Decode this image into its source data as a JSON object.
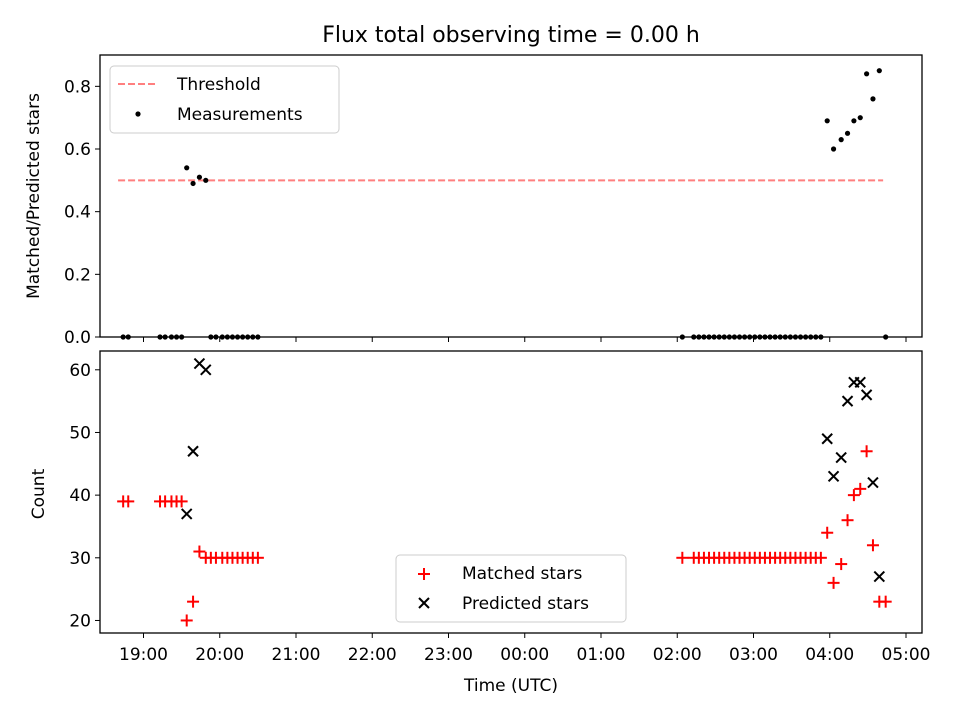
{
  "chart_data": [
    {
      "type": "scatter",
      "title": "Flux total observing time = 0.00 h",
      "xlabel": "",
      "ylabel": "Matched/Predicted stars",
      "ylim": [
        0,
        0.9
      ],
      "yticks": [
        "0.0",
        "0.2",
        "0.4",
        "0.6",
        "0.8"
      ],
      "grid": false,
      "legend_position": "upper-left",
      "threshold": {
        "name": "Threshold",
        "value": 0.5,
        "x_range": [
          "18:40",
          "04:42"
        ],
        "color": "#ff7f7f",
        "style": "dashed"
      },
      "series": [
        {
          "name": "Measurements",
          "color": "#000000",
          "marker": "dot",
          "points": [
            [
              "18:44",
              0
            ],
            [
              "18:48",
              0
            ],
            [
              "19:13",
              0
            ],
            [
              "19:17",
              0
            ],
            [
              "19:22",
              0
            ],
            [
              "19:26",
              0
            ],
            [
              "19:30",
              0
            ],
            [
              "19:34",
              0.54
            ],
            [
              "19:39",
              0.49
            ],
            [
              "19:44",
              0.51
            ],
            [
              "19:49",
              0.5
            ],
            [
              "19:53",
              0
            ],
            [
              "19:57",
              0
            ],
            [
              "20:02",
              0
            ],
            [
              "20:06",
              0
            ],
            [
              "20:10",
              0
            ],
            [
              "20:14",
              0
            ],
            [
              "20:18",
              0
            ],
            [
              "20:22",
              0
            ],
            [
              "20:26",
              0
            ],
            [
              "20:30",
              0
            ],
            [
              "02:04",
              0
            ],
            [
              "02:13",
              0
            ],
            [
              "02:17",
              0
            ],
            [
              "02:21",
              0
            ],
            [
              "02:25",
              0
            ],
            [
              "02:29",
              0
            ],
            [
              "02:33",
              0
            ],
            [
              "02:37",
              0
            ],
            [
              "02:41",
              0
            ],
            [
              "02:45",
              0
            ],
            [
              "02:49",
              0
            ],
            [
              "02:53",
              0
            ],
            [
              "02:57",
              0
            ],
            [
              "03:01",
              0
            ],
            [
              "03:05",
              0
            ],
            [
              "03:09",
              0
            ],
            [
              "03:13",
              0
            ],
            [
              "03:17",
              0
            ],
            [
              "03:21",
              0
            ],
            [
              "03:25",
              0
            ],
            [
              "03:29",
              0
            ],
            [
              "03:33",
              0
            ],
            [
              "03:37",
              0
            ],
            [
              "03:41",
              0
            ],
            [
              "03:45",
              0
            ],
            [
              "03:49",
              0
            ],
            [
              "03:53",
              0
            ],
            [
              "03:58",
              0.69
            ],
            [
              "04:03",
              0.6
            ],
            [
              "04:09",
              0.63
            ],
            [
              "04:14",
              0.65
            ],
            [
              "04:19",
              0.69
            ],
            [
              "04:24",
              0.7
            ],
            [
              "04:29",
              0.84
            ],
            [
              "04:34",
              0.76
            ],
            [
              "04:39",
              0.85
            ],
            [
              "04:44",
              0
            ]
          ]
        }
      ]
    },
    {
      "type": "scatter",
      "title": "",
      "xlabel": "Time (UTC)",
      "ylabel": "Count",
      "ylim": [
        18,
        63
      ],
      "yticks": [
        "20",
        "30",
        "40",
        "50",
        "60"
      ],
      "xticks": [
        "19:00",
        "20:00",
        "21:00",
        "22:00",
        "23:00",
        "00:00",
        "01:00",
        "02:00",
        "03:00",
        "04:00",
        "05:00"
      ],
      "grid": false,
      "legend_position": "lower-center",
      "series": [
        {
          "name": "Matched stars",
          "color": "#ff0000",
          "marker": "plus",
          "points": [
            [
              "18:44",
              39
            ],
            [
              "18:48",
              39
            ],
            [
              "19:13",
              39
            ],
            [
              "19:17",
              39
            ],
            [
              "19:22",
              39
            ],
            [
              "19:26",
              39
            ],
            [
              "19:30",
              39
            ],
            [
              "19:34",
              20
            ],
            [
              "19:39",
              23
            ],
            [
              "19:44",
              31
            ],
            [
              "19:49",
              30
            ],
            [
              "19:53",
              30
            ],
            [
              "19:57",
              30
            ],
            [
              "20:02",
              30
            ],
            [
              "20:06",
              30
            ],
            [
              "20:10",
              30
            ],
            [
              "20:14",
              30
            ],
            [
              "20:18",
              30
            ],
            [
              "20:22",
              30
            ],
            [
              "20:26",
              30
            ],
            [
              "20:30",
              30
            ],
            [
              "02:04",
              30
            ],
            [
              "02:13",
              30
            ],
            [
              "02:17",
              30
            ],
            [
              "02:21",
              30
            ],
            [
              "02:25",
              30
            ],
            [
              "02:29",
              30
            ],
            [
              "02:33",
              30
            ],
            [
              "02:37",
              30
            ],
            [
              "02:41",
              30
            ],
            [
              "02:45",
              30
            ],
            [
              "02:49",
              30
            ],
            [
              "02:53",
              30
            ],
            [
              "02:57",
              30
            ],
            [
              "03:01",
              30
            ],
            [
              "03:05",
              30
            ],
            [
              "03:09",
              30
            ],
            [
              "03:13",
              30
            ],
            [
              "03:17",
              30
            ],
            [
              "03:21",
              30
            ],
            [
              "03:25",
              30
            ],
            [
              "03:29",
              30
            ],
            [
              "03:33",
              30
            ],
            [
              "03:37",
              30
            ],
            [
              "03:41",
              30
            ],
            [
              "03:45",
              30
            ],
            [
              "03:49",
              30
            ],
            [
              "03:53",
              30
            ],
            [
              "03:58",
              34
            ],
            [
              "04:03",
              26
            ],
            [
              "04:09",
              29
            ],
            [
              "04:14",
              36
            ],
            [
              "04:19",
              40
            ],
            [
              "04:24",
              41
            ],
            [
              "04:29",
              47
            ],
            [
              "04:34",
              32
            ],
            [
              "04:39",
              23
            ],
            [
              "04:44",
              23
            ]
          ]
        },
        {
          "name": "Predicted stars",
          "color": "#000000",
          "marker": "x",
          "points": [
            [
              "19:34",
              37
            ],
            [
              "19:39",
              47
            ],
            [
              "19:44",
              61
            ],
            [
              "19:49",
              60
            ],
            [
              "03:58",
              49
            ],
            [
              "04:03",
              43
            ],
            [
              "04:09",
              46
            ],
            [
              "04:14",
              55
            ],
            [
              "04:19",
              58
            ],
            [
              "04:24",
              58
            ],
            [
              "04:29",
              56
            ],
            [
              "04:34",
              42
            ],
            [
              "04:39",
              27
            ]
          ]
        }
      ]
    }
  ]
}
